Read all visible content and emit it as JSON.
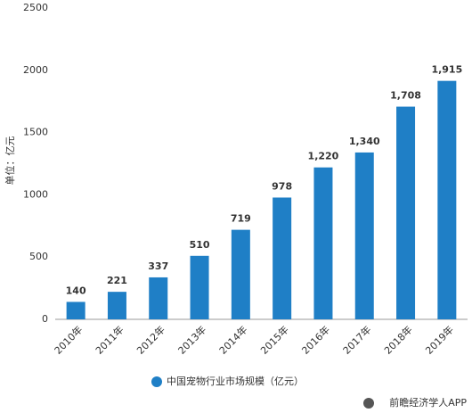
{
  "chart_data": {
    "type": "bar",
    "y_axis_label": "单位：亿元",
    "categories": [
      "2010年",
      "2011年",
      "2012年",
      "2013年",
      "2014年",
      "2015年",
      "2016年",
      "2017年",
      "2018年",
      "2019年"
    ],
    "series": [
      {
        "name": "中国宠物行业市场规模（亿元）",
        "color": "#1f7fc6",
        "values": [
          140,
          221,
          337,
          510,
          719,
          978,
          1220,
          1340,
          1708,
          1915
        ],
        "value_labels": [
          "140",
          "221",
          "337",
          "510",
          "719",
          "978",
          "1,220",
          "1,340",
          "1,708",
          "1,915"
        ]
      }
    ],
    "ylim": [
      0,
      2500
    ],
    "yticks": [
      0,
      500,
      1000,
      1500,
      2000,
      2500
    ],
    "source": "前瞻经济学人APP"
  }
}
